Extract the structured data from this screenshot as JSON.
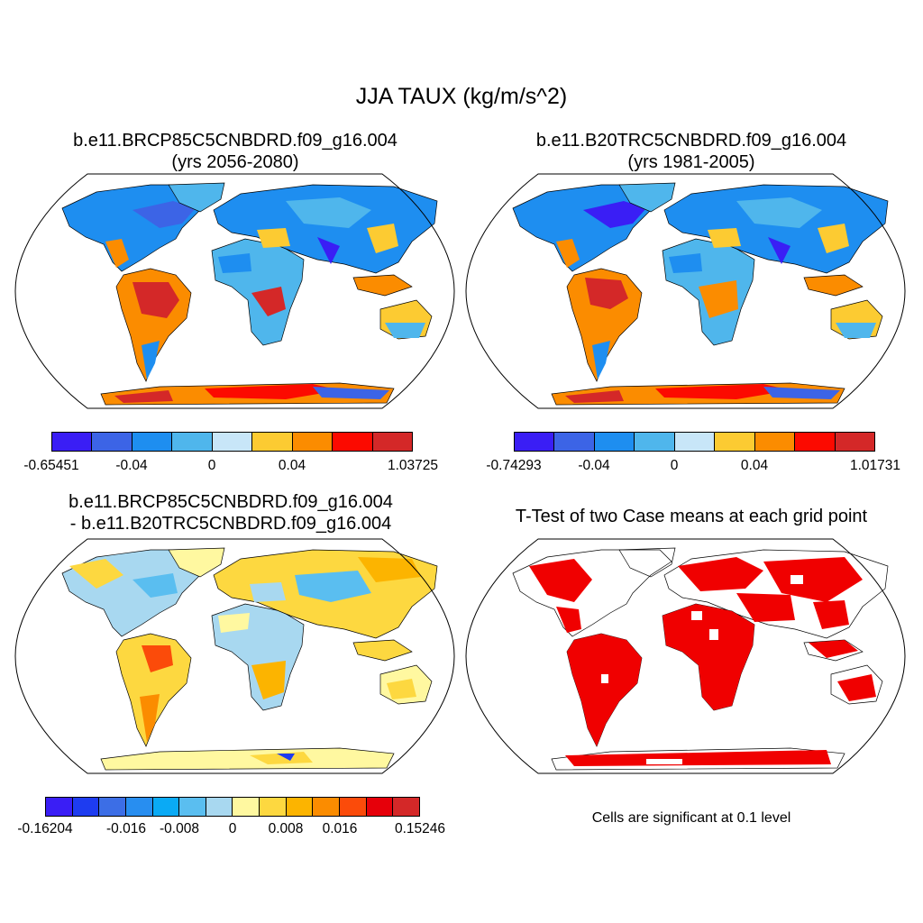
{
  "title": "JJA TAUX (kg/m/s^2)",
  "panels": [
    {
      "id": "case1",
      "title_line1": "b.e11.BRCP85C5CNBDRD.f09_g16.004",
      "title_line2": "(yrs 2056-2080)",
      "palette": [
        "#3a1ef5",
        "#3c64e6",
        "#1e8ef0",
        "#4fb6ec",
        "#c8e6f8",
        "#fccb32",
        "#fb8c00",
        "#fc0a00",
        "#d42828"
      ],
      "labels": [
        "-0.65451",
        "-0.04",
        "0",
        "0.04",
        "1.03725"
      ]
    },
    {
      "id": "case2",
      "title_line1": "b.e11.B20TRC5CNBDRD.f09_g16.004",
      "title_line2": "(yrs 1981-2005)",
      "palette": [
        "#3a1ef5",
        "#3c64e6",
        "#1e8ef0",
        "#4fb6ec",
        "#c8e6f8",
        "#fccb32",
        "#fb8c00",
        "#fc0a00",
        "#d42828"
      ],
      "labels": [
        "-0.74293",
        "-0.04",
        "0",
        "0.04",
        "1.01731"
      ]
    },
    {
      "id": "difference",
      "title_line1": "b.e11.BRCP85C5CNBDRD.f09_g16.004",
      "title_line2": "- b.e11.B20TRC5CNBDRD.f09_g16.004",
      "palette": [
        "#3a1ef5",
        "#1e3cf0",
        "#3c6ee6",
        "#288ef0",
        "#0aaaf5",
        "#5abef0",
        "#a8d8f0",
        "#fff8a0",
        "#fdd840",
        "#fcb400",
        "#fb8c00",
        "#fb4b0a",
        "#e6000a",
        "#d42828"
      ],
      "labels": [
        "-0.16204",
        "-0.016",
        "-0.008",
        "0",
        "0.008",
        "0.016",
        "0.15246"
      ]
    },
    {
      "id": "ttest",
      "title_line1": "T-Test of two Case means at each grid point",
      "note": "Cells are significant at 0.1 level",
      "sig_color": "#f00000"
    }
  ]
}
